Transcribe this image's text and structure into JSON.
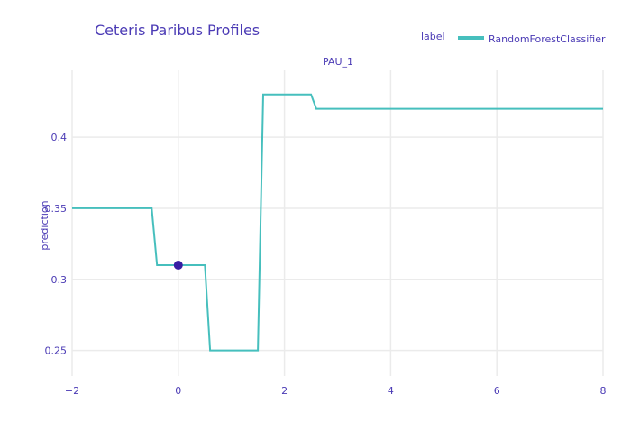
{
  "chart_data": {
    "type": "line",
    "title": "Ceteris Paribus Profiles",
    "subplot_title": "PAU_1",
    "ylabel": "prediction",
    "xlabel": "",
    "xlim": [
      -2,
      8
    ],
    "ylim": [
      0.232,
      0.447
    ],
    "x_ticks": [
      -2,
      0,
      2,
      4,
      6,
      8
    ],
    "y_ticks": [
      0.25,
      0.3,
      0.35,
      0.4
    ],
    "grid": true,
    "legend_title": "label",
    "legend_position": "top-right",
    "series": [
      {
        "name": "RandomForestClassifier",
        "color": "#46bfbd",
        "x": [
          -2,
          -0.5,
          -0.4,
          0.5,
          0.6,
          1.5,
          1.6,
          2.5,
          2.6,
          8
        ],
        "y": [
          0.35,
          0.35,
          0.31,
          0.31,
          0.25,
          0.25,
          0.43,
          0.43,
          0.42,
          0.42
        ]
      }
    ],
    "observation": {
      "x": 0,
      "y": 0.31,
      "color": "#371ea3"
    }
  }
}
